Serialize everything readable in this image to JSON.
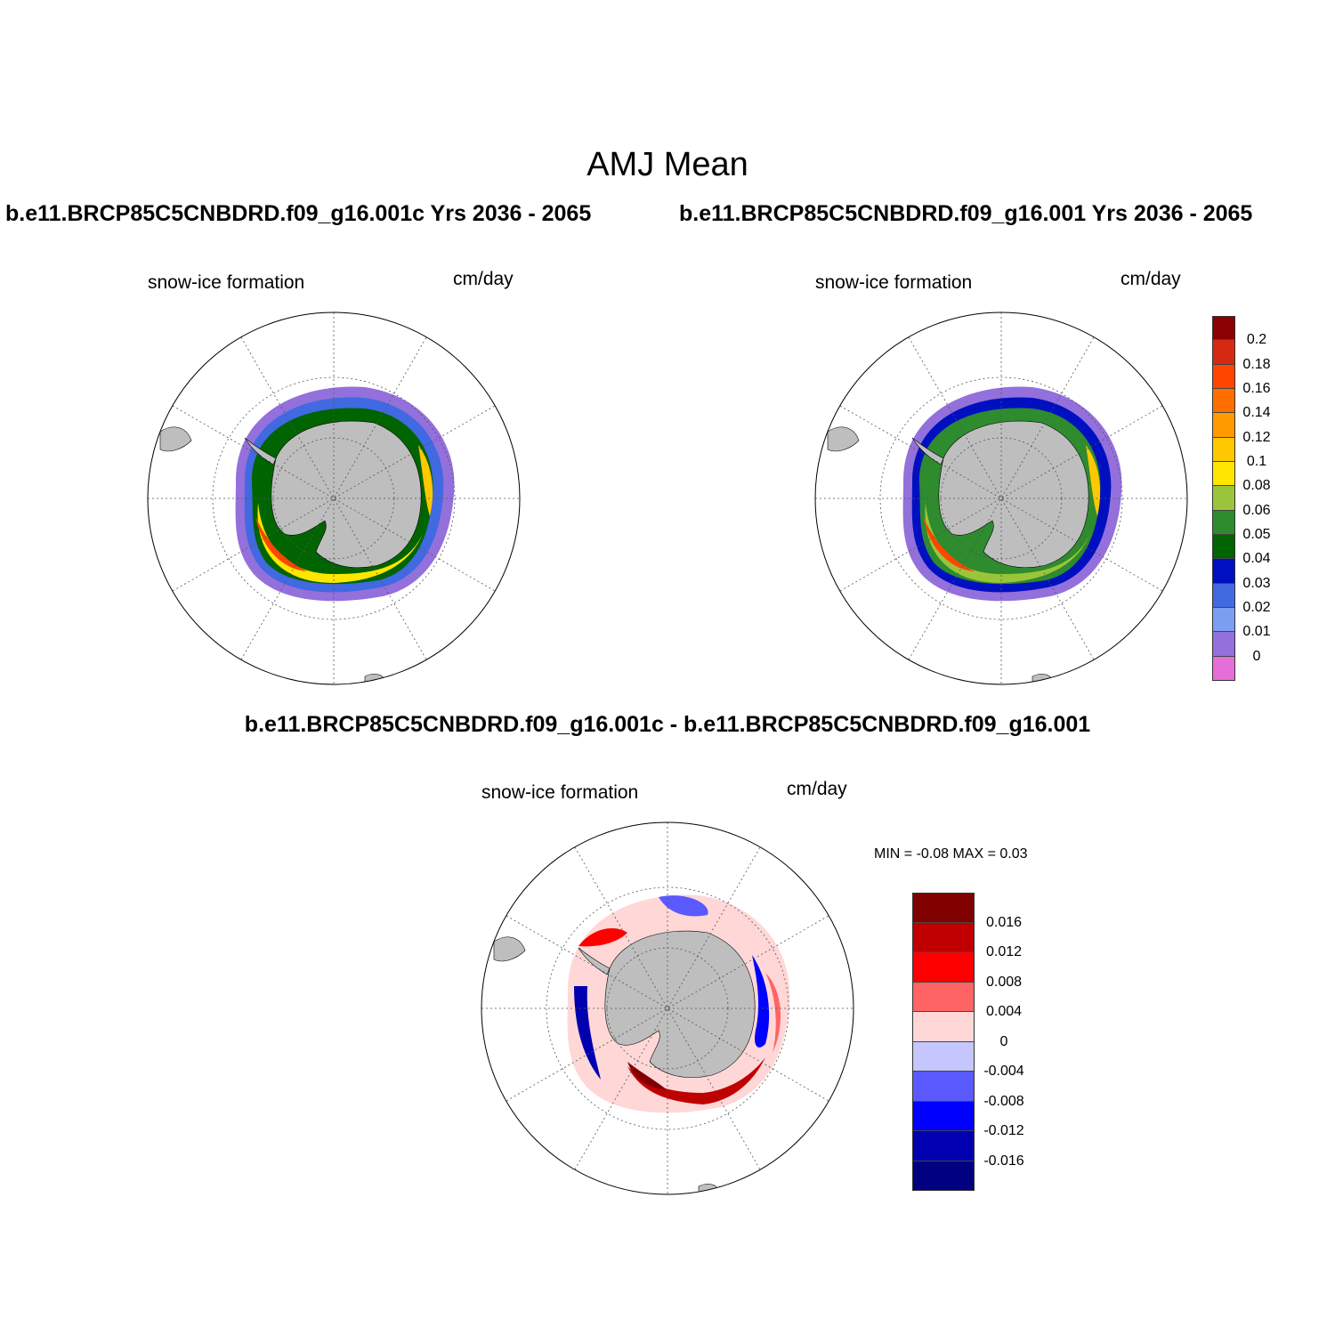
{
  "figure": {
    "title": "AMJ Mean",
    "panel1_title": "b.e11.BRCP85C5CNBDRD.f09_g16.001c  Yrs 2036 - 2065",
    "panel2_title": "b.e11.BRCP85C5CNBDRD.f09_g16.001  Yrs 2036 - 2065",
    "diff_title": "b.e11.BRCP85C5CNBDRD.f09_g16.001c - b.e11.BRCP85C5CNBDRD.f09_g16.001"
  },
  "panels": {
    "p1": {
      "variable": "snow-ice formation",
      "units": "cm/day"
    },
    "p2": {
      "variable": "snow-ice formation",
      "units": "cm/day"
    },
    "p3": {
      "variable": "snow-ice formation",
      "units": "cm/day",
      "min_max": "MIN =  -0.08 MAX =   0.03"
    }
  },
  "colorbar_main": {
    "labels": [
      "0.2",
      "0.18",
      "0.16",
      "0.14",
      "0.12",
      "0.1",
      "0.08",
      "0.06",
      "0.05",
      "0.04",
      "0.03",
      "0.02",
      "0.01",
      "0"
    ],
    "colors": [
      "#8b0000",
      "#d42a12",
      "#ff4500",
      "#ff6e00",
      "#ff9a00",
      "#ffc800",
      "#ffe600",
      "#9ac53a",
      "#2e8b2e",
      "#006400",
      "#0010c0",
      "#4169e1",
      "#7b9ef0",
      "#9370db",
      "#e66ed9"
    ]
  },
  "colorbar_diff": {
    "labels": [
      "0.016",
      "0.012",
      "0.008",
      "0.004",
      "0",
      "-0.004",
      "-0.008",
      "-0.012",
      "-0.016"
    ],
    "colors": [
      "#800000",
      "#c00000",
      "#ff0000",
      "#ff6464",
      "#ffd7d7",
      "#c6c6ff",
      "#5a5aff",
      "#0000ff",
      "#0000b0",
      "#000080"
    ]
  },
  "map_colors": {
    "land": "#bebebe",
    "ocean": "#ffffff",
    "grid": "#555555"
  }
}
